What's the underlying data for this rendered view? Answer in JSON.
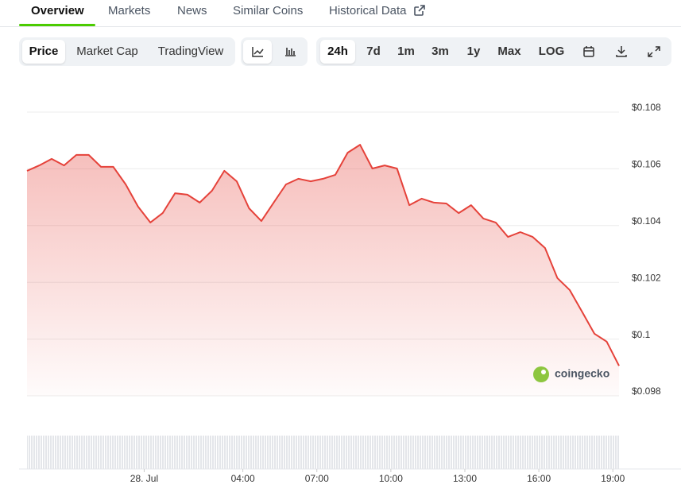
{
  "tabs": [
    "Overview",
    "Markets",
    "News",
    "Similar Coins",
    "Historical Data"
  ],
  "toolbar": {
    "views": [
      "Price",
      "Market Cap",
      "TradingView"
    ],
    "ranges": [
      "24h",
      "7d",
      "1m",
      "3m",
      "1y",
      "Max",
      "LOG"
    ]
  },
  "chart_data": {
    "type": "area",
    "color": "#e5423a",
    "grid": true,
    "watermark": "coingecko",
    "x": [
      -4.75,
      -4.25,
      -3.75,
      -3.25,
      -2.75,
      -2.25,
      -1.75,
      -1.25,
      -0.75,
      -0.25,
      0.25,
      0.75,
      1.25,
      1.75,
      2.25,
      2.75,
      3.25,
      3.75,
      4.25,
      4.75,
      5.25,
      5.75,
      6.25,
      6.75,
      7.25,
      7.75,
      8.25,
      8.75,
      9.25,
      9.75,
      10.25,
      10.75,
      11.25,
      11.75,
      12.25,
      12.75,
      13.25,
      13.75,
      14.25,
      14.75,
      15.25,
      15.75,
      16.25,
      16.75,
      17.25,
      17.75,
      18.25,
      18.75,
      19.25
    ],
    "values": [
      0.10593,
      0.10612,
      0.10635,
      0.10612,
      0.10649,
      0.10649,
      0.10607,
      0.10607,
      0.10545,
      0.10467,
      0.10411,
      0.10444,
      0.10514,
      0.10509,
      0.10481,
      0.10523,
      0.10593,
      0.10556,
      0.10461,
      0.10416,
      0.10481,
      0.10545,
      0.10565,
      0.10556,
      0.10565,
      0.10579,
      0.10657,
      0.10685,
      0.10601,
      0.10612,
      0.10601,
      0.10472,
      0.10495,
      0.10481,
      0.10478,
      0.10444,
      0.10472,
      0.10425,
      0.10411,
      0.1036,
      0.10377,
      0.1036,
      0.10321,
      0.10215,
      0.10173,
      0.10097,
      0.10019,
      0.09991,
      0.09906
    ],
    "xlim": [
      -4.75,
      19.25
    ],
    "xticks": [
      {
        "value": 0,
        "label": "28. Jul"
      },
      {
        "value": 4,
        "label": "04:00"
      },
      {
        "value": 7,
        "label": "07:00"
      },
      {
        "value": 10,
        "label": "10:00"
      },
      {
        "value": 13,
        "label": "13:00"
      },
      {
        "value": 16,
        "label": "16:00"
      },
      {
        "value": 19,
        "label": "19:00"
      }
    ],
    "ylim": [
      0.098,
      0.108
    ],
    "yticks": [
      {
        "value": 0.098,
        "label": "$0.098"
      },
      {
        "value": 0.1,
        "label": "$0.1"
      },
      {
        "value": 0.102,
        "label": "$0.102"
      },
      {
        "value": 0.104,
        "label": "$0.104"
      },
      {
        "value": 0.106,
        "label": "$0.106"
      },
      {
        "value": 0.108,
        "label": "$0.108"
      }
    ]
  }
}
